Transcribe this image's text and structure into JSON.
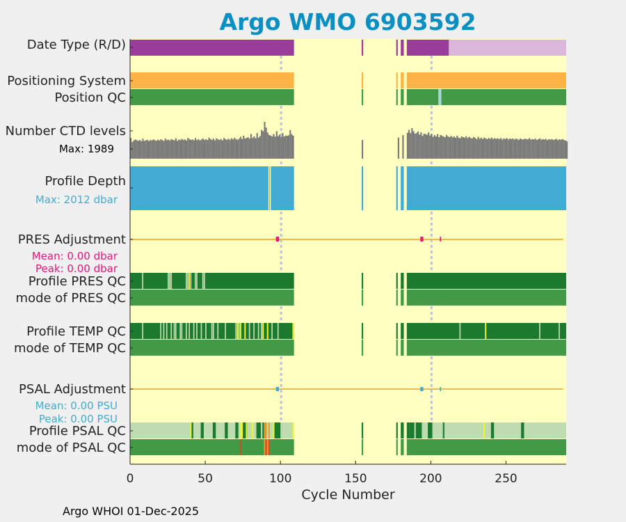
{
  "chart_data": {
    "type": "timeline",
    "title": "Argo WMO 6903592",
    "xlabel": "Cycle Number",
    "xlim": [
      0,
      290
    ],
    "xticks": [
      0,
      50,
      100,
      150,
      200,
      250
    ],
    "footer": "Argo WHOI 01-Dec-2025",
    "gaps": [
      [
        109,
        154
      ],
      [
        155,
        177
      ],
      [
        178,
        180
      ],
      [
        182,
        184
      ]
    ],
    "dashed_lines": [
      {
        "row": "date_type",
        "x": 100
      },
      {
        "row": "date_type",
        "x": 200
      }
    ],
    "colors": {
      "background": "#ffffc0",
      "date_type_r": "#9a3c9a",
      "date_type_d": "#dbb8db",
      "positioning": "#fdb444",
      "position_qc": "#429a46",
      "position_qc_interp": "#a8d8d8",
      "ctd": "#7a7a7a",
      "profile_depth": "#42abd3",
      "pres_adj": "#e8157c",
      "psal_adj": "#42abd3",
      "qc_good": "#1c7a2e",
      "qc_light": "#bfdcb0",
      "qc_yellow": "#f6f62a",
      "qc_orange": "#e89a2a",
      "qc_red": "#dd4422",
      "qc_mode": "#429a46",
      "adj_line": "#f5b84a",
      "dash": "#c0c0e0",
      "title": "#0a8fc2"
    },
    "rows": {
      "date_type": {
        "label": "Date Type (R/D)",
        "r_until": 212
      },
      "positioning": {
        "label": "Positioning System"
      },
      "position_qc": {
        "label": "Position QC",
        "interp_cycles": [
          205
        ]
      },
      "ctd": {
        "label": "Number CTD levels",
        "max_label": "Max: 1989",
        "max": 1989
      },
      "profile_depth": {
        "label": "Profile Depth",
        "max_label": "Max: 2012 dbar",
        "gaps": [
          92,
          93
        ]
      },
      "pres_adj": {
        "label": "PRES Adjustment",
        "mean": "Mean: 0.00 dbar",
        "peak": "Peak: 0.00 dbar",
        "points": [
          97,
          193,
          206
        ]
      },
      "pres_qc": {
        "label": "Profile PRES QC",
        "mode_label": "mode of PRES QC",
        "light": [
          8,
          25,
          26,
          27,
          37,
          38,
          40,
          43,
          44,
          48,
          49
        ],
        "yellow": [
          39
        ]
      },
      "temp_qc": {
        "label": "Profile TEMP QC",
        "mode_label": "mode of TEMP QC",
        "light": [
          8,
          20,
          22,
          24,
          27,
          29,
          30,
          33,
          34,
          37,
          39,
          42,
          44,
          47,
          50,
          54,
          55,
          58,
          63,
          70,
          72,
          79,
          82,
          85,
          87,
          94,
          98,
          219,
          272,
          285
        ],
        "yellow": [
          71,
          73,
          76,
          88,
          91,
          108,
          236
        ]
      },
      "psal_adj": {
        "label": "PSAL Adjustment",
        "mean": "Mean: 0.00 PSU",
        "peak": "Peak: 0.00 PSU",
        "points": [
          97,
          193,
          206
        ]
      },
      "psal_qc": {
        "label": "Profile PSAL QC",
        "mode_label": "mode of PSAL QC",
        "green_blocks": [
          [
            40,
            41
          ],
          [
            47,
            48
          ],
          [
            55,
            56
          ],
          [
            63,
            64
          ],
          [
            70,
            71
          ],
          [
            75,
            77
          ],
          [
            84,
            86
          ],
          [
            88,
            89
          ],
          [
            96,
            99
          ],
          [
            186,
            188
          ],
          [
            190,
            193
          ],
          [
            198,
            200
          ],
          [
            208,
            208
          ],
          [
            240,
            241
          ],
          [
            260,
            261
          ]
        ],
        "yellow": [
          40,
          73,
          74,
          77,
          81,
          95,
          108,
          235
        ],
        "orange": [
          89,
          90,
          92
        ],
        "mode_red": [
          73,
          90,
          92
        ],
        "mode_orange": [
          89,
          91
        ]
      }
    },
    "ctd_values": [
      1120,
      900,
      980,
      1040,
      1000,
      960,
      1010,
      940,
      1080,
      960,
      990,
      1020,
      950,
      1010,
      980,
      1040,
      1000,
      970,
      1030,
      980,
      1050,
      1000,
      960,
      1080,
      1000,
      1030,
      980,
      1060,
      1010,
      990,
      1100,
      960,
      1040,
      1000,
      1070,
      1010,
      1040,
      980,
      1120,
      1060,
      1010,
      1040,
      990,
      1110,
      1000,
      1060,
      980,
      1040,
      1090,
      1010,
      1050,
      1000,
      1130,
      1060,
      1010,
      1080,
      990,
      1100,
      1040,
      1010,
      1060,
      990,
      1120,
      1050,
      1020,
      1080,
      1010,
      1100,
      1040,
      1130,
      1060,
      1020,
      1080,
      1180,
      1060,
      1240,
      1090,
      1120,
      1160,
      1080,
      1330,
      1120,
      1200,
      1100,
      1380,
      1140,
      1220,
      1550,
      1480,
      1989,
      1680,
      1410,
      1280,
      1250,
      1200,
      1330,
      1190,
      1480,
      1220,
      1300,
      1180,
      1380,
      1200,
      1250,
      1230,
      1260,
      1540,
      1320,
      1240
    ],
    "ctd_values_right": [
      1400,
      1560,
      1380,
      1650,
      1480,
      1350,
      1380,
      1470,
      1300,
      1420,
      1230,
      1350,
      1330,
      1290,
      1420,
      1250,
      1340,
      1180,
      1280,
      1200,
      1330,
      1160,
      1280,
      1240,
      1190,
      1160,
      1280,
      1200,
      1160,
      1230,
      1150,
      1200,
      1130,
      1240,
      1140,
      1100,
      1200,
      1160,
      1130,
      1210,
      1110,
      1180,
      1120,
      1090,
      1170,
      1120,
      1050,
      1180,
      1080,
      1130,
      1060,
      1140,
      1100,
      1050,
      1120,
      1070,
      1140,
      1060,
      1110,
      1070,
      1100,
      1050,
      1120,
      1030,
      1090,
      1060,
      1110,
      1040,
      1080,
      1060,
      1090,
      1030,
      1080,
      1060,
      1010,
      1090,
      1050,
      1030,
      1080,
      1060,
      1040,
      1110,
      1030,
      1060,
      1040,
      1080,
      1010,
      1050,
      1090,
      1020,
      1060,
      1030,
      1070,
      1000,
      1050,
      1030,
      1060,
      1010,
      1040,
      1070,
      1000,
      1050,
      1020,
      1060,
      1010,
      980,
      940
    ],
    "ctd_isolated": [
      [
        154,
        1010
      ],
      [
        178,
        1140
      ],
      [
        181,
        1270
      ]
    ]
  }
}
